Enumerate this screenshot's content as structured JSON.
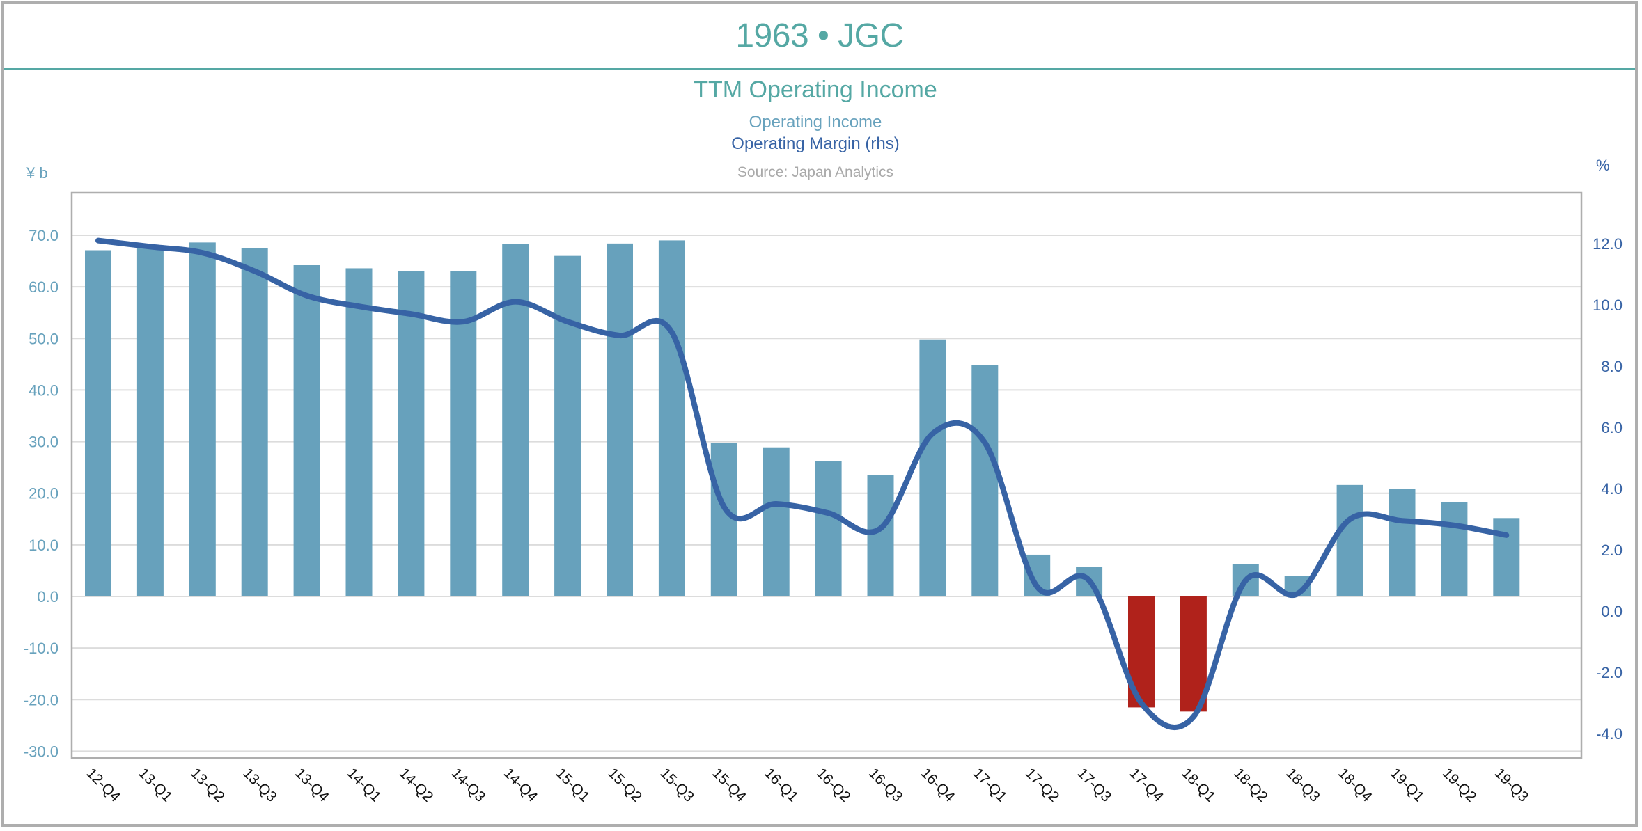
{
  "header": {
    "title": "1963 • JGC"
  },
  "chart_data": {
    "type": "bar",
    "title": "TTM Operating Income",
    "source": "Source: Japan Analytics",
    "legend": [
      "Operating Income",
      "Operating Margin (rhs)"
    ],
    "legend_placement": "top-center",
    "grid": true,
    "categories": [
      "12-Q4",
      "13-Q1",
      "13-Q2",
      "13-Q3",
      "13-Q4",
      "14-Q1",
      "14-Q2",
      "14-Q3",
      "14-Q4",
      "15-Q1",
      "15-Q2",
      "15-Q3",
      "15-Q4",
      "16-Q1",
      "16-Q2",
      "16-Q3",
      "16-Q4",
      "17-Q1",
      "17-Q2",
      "17-Q3",
      "17-Q4",
      "18-Q1",
      "18-Q2",
      "18-Q3",
      "18-Q4",
      "19-Q1",
      "19-Q2",
      "19-Q3"
    ],
    "y_left": {
      "label": "¥ b",
      "range": [
        -30,
        70
      ],
      "ticks": [
        "70.0",
        "60.0",
        "50.0",
        "40.0",
        "30.0",
        "20.0",
        "10.0",
        "0.0",
        "-10.0",
        "-20.0",
        "-30.0"
      ]
    },
    "y_right": {
      "label": "%",
      "range": [
        -4,
        12
      ],
      "ticks": [
        "12.0",
        "10.0",
        "8.0",
        "6.0",
        "4.0",
        "2.0",
        "0.0",
        "-2.0",
        "-4.0"
      ]
    },
    "series": [
      {
        "name": "Operating Income",
        "type": "bar",
        "axis": "left",
        "color": "#67a1bc",
        "negative_color": "#b0221b",
        "values": [
          67.1,
          67.7,
          68.6,
          67.5,
          64.2,
          63.6,
          63.0,
          63.0,
          68.3,
          66.0,
          68.4,
          69.0,
          29.8,
          28.9,
          26.3,
          23.6,
          49.8,
          44.8,
          8.1,
          5.7,
          -21.5,
          -22.3,
          6.3,
          4.0,
          21.6,
          20.9,
          18.3,
          15.2
        ]
      },
      {
        "name": "Operating Margin (rhs)",
        "type": "line",
        "axis": "right",
        "smooth": true,
        "color": "#3763a5",
        "values": [
          12.1,
          11.9,
          11.7,
          11.1,
          10.3,
          9.95,
          9.7,
          9.45,
          10.1,
          9.45,
          9.0,
          9.1,
          3.4,
          3.5,
          3.2,
          2.7,
          5.8,
          5.5,
          0.8,
          1.0,
          -3.0,
          -3.45,
          1.0,
          0.57,
          3.0,
          2.95,
          2.8,
          2.48
        ]
      }
    ]
  },
  "colors": {
    "title": "#55a8a4",
    "bars": "#67a1bc",
    "bars_negative": "#b0221b",
    "line": "#3763a5",
    "grid": "#dcdcdc",
    "frame": "#aeaeae"
  }
}
